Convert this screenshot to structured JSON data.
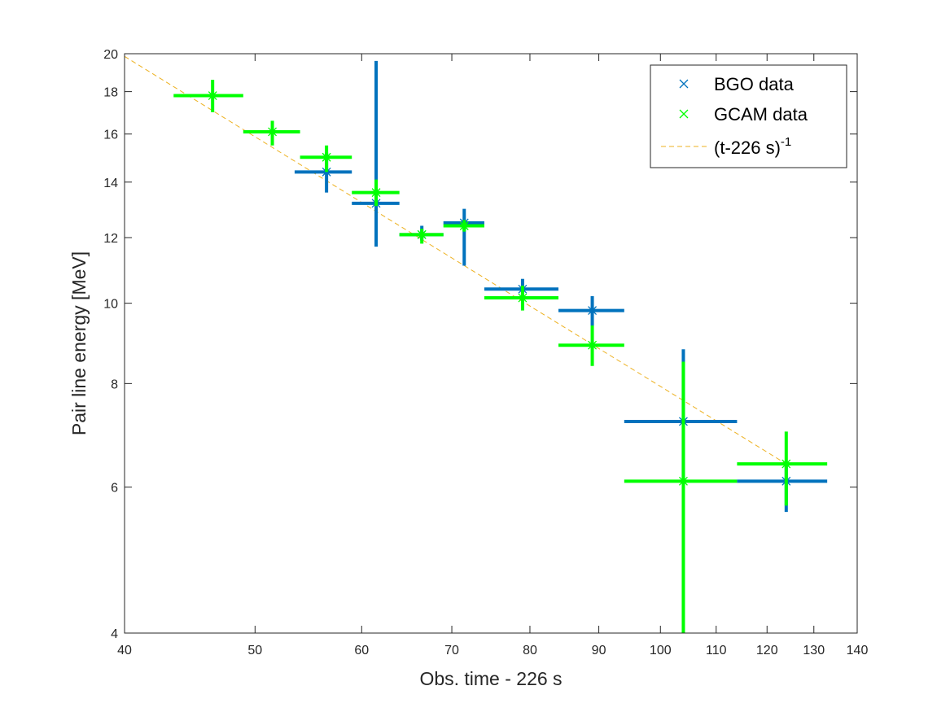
{
  "chart_data": {
    "type": "scatter",
    "xlabel": "Obs. time - 226 s",
    "ylabel": "Pair line energy [MeV]",
    "x_scale": "log",
    "y_scale": "log",
    "xlim": [
      40,
      140
    ],
    "ylim": [
      4,
      20
    ],
    "x_ticks": [
      40,
      50,
      60,
      70,
      80,
      90,
      100,
      110,
      120,
      130,
      140
    ],
    "y_ticks": [
      4,
      6,
      8,
      10,
      12,
      14,
      16,
      18,
      20
    ],
    "grid": false,
    "legend_position": "top-right",
    "series": [
      {
        "name": "BGO data",
        "color": "#0072bd",
        "marker": "x",
        "points": [
          {
            "x": 56.5,
            "y": 14.4,
            "xerr": [
              53.5,
              59.0
            ],
            "yerr": [
              13.6,
              15.2
            ]
          },
          {
            "x": 61.5,
            "y": 13.2,
            "xerr": [
              59.0,
              64.0
            ],
            "yerr": [
              11.7,
              19.6
            ]
          },
          {
            "x": 66.5,
            "y": 12.1,
            "xerr": [
              64.0,
              69.0
            ],
            "yerr": [
              11.9,
              12.4
            ]
          },
          {
            "x": 71.5,
            "y": 12.5,
            "xerr": [
              69.0,
              74.0
            ],
            "yerr": [
              11.1,
              13.0
            ]
          },
          {
            "x": 79.0,
            "y": 10.4,
            "xerr": [
              74.0,
              84.0
            ],
            "yerr": [
              10.1,
              10.7
            ]
          },
          {
            "x": 89.0,
            "y": 9.8,
            "xerr": [
              84.0,
              94.0
            ],
            "yerr": [
              9.4,
              10.2
            ]
          },
          {
            "x": 104.0,
            "y": 7.2,
            "xerr": [
              94.0,
              114.0
            ],
            "yerr": [
              6.1,
              8.8
            ]
          },
          {
            "x": 124.0,
            "y": 6.1,
            "xerr": [
              114.0,
              133.0
            ],
            "yerr": [
              5.6,
              6.4
            ]
          }
        ]
      },
      {
        "name": "GCAM data",
        "color": "#00ff00",
        "marker": "x",
        "points": [
          {
            "x": 46.5,
            "y": 17.8,
            "xerr": [
              43.5,
              49.0
            ],
            "yerr": [
              17.0,
              18.6
            ]
          },
          {
            "x": 51.5,
            "y": 16.1,
            "xerr": [
              49.0,
              54.0
            ],
            "yerr": [
              15.5,
              16.6
            ]
          },
          {
            "x": 56.5,
            "y": 15.0,
            "xerr": [
              54.0,
              59.0
            ],
            "yerr": [
              14.4,
              15.5
            ]
          },
          {
            "x": 61.5,
            "y": 13.6,
            "xerr": [
              59.0,
              64.0
            ],
            "yerr": [
              13.1,
              14.1
            ]
          },
          {
            "x": 66.5,
            "y": 12.1,
            "xerr": [
              64.0,
              69.0
            ],
            "yerr": [
              11.8,
              12.3
            ]
          },
          {
            "x": 71.5,
            "y": 12.4,
            "xerr": [
              69.0,
              74.0
            ],
            "yerr": [
              12.2,
              12.6
            ]
          },
          {
            "x": 79.0,
            "y": 10.15,
            "xerr": [
              74.0,
              84.0
            ],
            "yerr": [
              9.8,
              10.5
            ]
          },
          {
            "x": 89.0,
            "y": 8.9,
            "xerr": [
              84.0,
              94.0
            ],
            "yerr": [
              8.4,
              9.4
            ]
          },
          {
            "x": 104.0,
            "y": 6.1,
            "xerr": [
              94.0,
              114.0
            ],
            "yerr": [
              4.0,
              8.5
            ]
          },
          {
            "x": 124.0,
            "y": 6.4,
            "xerr": [
              114.0,
              133.0
            ],
            "yerr": [
              5.7,
              7.0
            ]
          }
        ]
      },
      {
        "name": "(t-226 s)",
        "name_superscript": "-1",
        "color": "#edb120",
        "line_style": "dashed",
        "x": [
          40,
          124
        ],
        "y": [
          19.85,
          6.4
        ]
      }
    ]
  }
}
